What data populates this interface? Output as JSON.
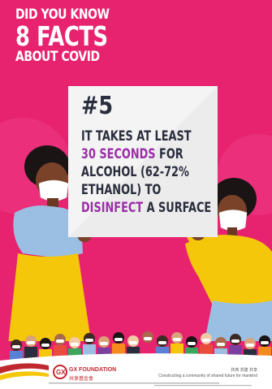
{
  "header": {
    "line1": "DID YOU KNOW",
    "line2": "8 FACTS",
    "line3": "ABOUT COVID"
  },
  "fact": {
    "number": "#5",
    "line1": "IT TAKES AT LEAST",
    "line2_highlight": "30 SECONDS",
    "line2_rest": " FOR",
    "line3": "ALCOHOL (62-72%",
    "line4": "ETHANOL) TO",
    "line5_highlight": "DISINFECT",
    "line5_rest": " A SURFACE"
  },
  "footer": {
    "logo_mark": "GX",
    "logo_text": "GX FOUNDATION",
    "logo_cn": "共享基金會",
    "tagline_cn": "共商 共建 共享",
    "tagline": "Constructing a community of shared future for mankind"
  },
  "colors": {
    "background": "#e7236f",
    "card": "#ececec",
    "card_text": "#2a2d3d",
    "highlight": "#9b2fa8",
    "brand_red": "#c0282f"
  }
}
